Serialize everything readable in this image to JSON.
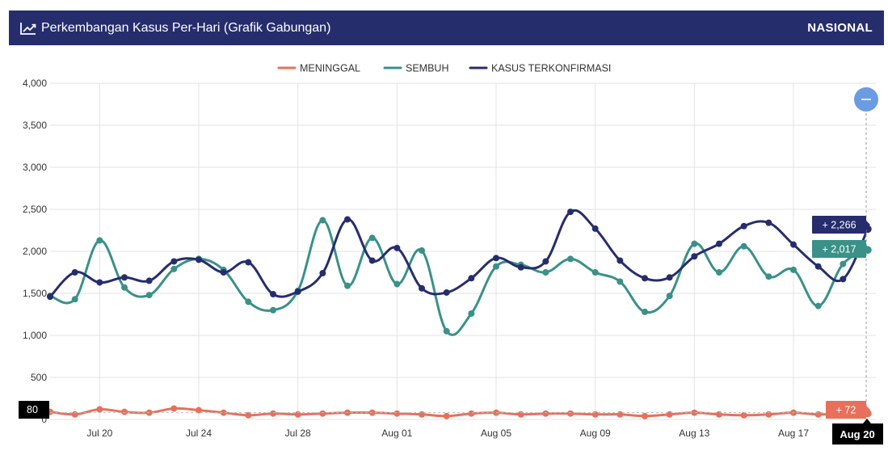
{
  "header": {
    "title": "Perkembangan Kasus Per-Hari (Grafik Gabungan)",
    "scope": "NASIONAL",
    "icon": "line-chart-icon"
  },
  "zoom_button": {
    "icon": "minus-icon"
  },
  "chart_data": {
    "type": "line",
    "title": "Perkembangan Kasus Per-Hari (Grafik Gabungan)",
    "x_start": "2020-07-18",
    "x_end": "2020-08-20",
    "x": [
      "Jul 18",
      "Jul 19",
      "Jul 20",
      "Jul 21",
      "Jul 22",
      "Jul 23",
      "Jul 24",
      "Jul 25",
      "Jul 26",
      "Jul 27",
      "Jul 28",
      "Jul 29",
      "Jul 30",
      "Jul 31",
      "Aug 01",
      "Aug 02",
      "Aug 03",
      "Aug 04",
      "Aug 05",
      "Aug 06",
      "Aug 07",
      "Aug 08",
      "Aug 09",
      "Aug 10",
      "Aug 11",
      "Aug 12",
      "Aug 13",
      "Aug 14",
      "Aug 15",
      "Aug 16",
      "Aug 17",
      "Aug 18",
      "Aug 19",
      "Aug 20"
    ],
    "x_ticks": [
      "Jul 20",
      "Jul 24",
      "Jul 28",
      "Aug 01",
      "Aug 05",
      "Aug 09",
      "Aug 13",
      "Aug 17"
    ],
    "x_tick_indices": [
      2,
      6,
      10,
      14,
      18,
      22,
      26,
      30
    ],
    "y_ticks": [
      "0",
      "500",
      "1,000",
      "1,500",
      "2,000",
      "2,500",
      "3,000",
      "3,500",
      "4,000"
    ],
    "ylim": [
      0,
      4000
    ],
    "grid": true,
    "legend_position": "top-center",
    "series": [
      {
        "name": "MENINGGAL",
        "color": "#e8705a",
        "values": [
          90,
          60,
          120,
          90,
          80,
          130,
          110,
          80,
          50,
          70,
          60,
          70,
          80,
          80,
          70,
          60,
          40,
          70,
          80,
          60,
          70,
          70,
          60,
          60,
          40,
          60,
          80,
          60,
          50,
          60,
          80,
          60,
          70,
          72
        ]
      },
      {
        "name": "SEMBUH",
        "color": "#3a9188",
        "values": [
          1470,
          1430,
          2130,
          1570,
          1480,
          1790,
          1910,
          1780,
          1400,
          1300,
          1530,
          2370,
          1590,
          2160,
          1610,
          2010,
          1050,
          1260,
          1820,
          1840,
          1750,
          1910,
          1750,
          1640,
          1280,
          1470,
          2090,
          1750,
          2060,
          1700,
          1780,
          1350,
          1850,
          2017
        ]
      },
      {
        "name": "KASUS TERKONFIRMASI",
        "color": "#262d6d",
        "values": [
          1460,
          1750,
          1630,
          1690,
          1650,
          1880,
          1900,
          1750,
          1870,
          1490,
          1520,
          1740,
          2380,
          1890,
          2040,
          1560,
          1510,
          1680,
          1920,
          1810,
          1880,
          2470,
          2270,
          1890,
          1680,
          1690,
          1940,
          2090,
          2300,
          2340,
          2080,
          1820,
          1670,
          2266
        ]
      }
    ],
    "selected_index": 33,
    "selected_label": "Aug 20",
    "crosshair_y_value": "80",
    "tooltips": [
      {
        "series": "KASUS TERKONFIRMASI",
        "text": "+ 2,266"
      },
      {
        "series": "SEMBUH",
        "text": "+ 2,017"
      },
      {
        "series": "MENINGGAL",
        "text": "+ 72"
      }
    ]
  }
}
